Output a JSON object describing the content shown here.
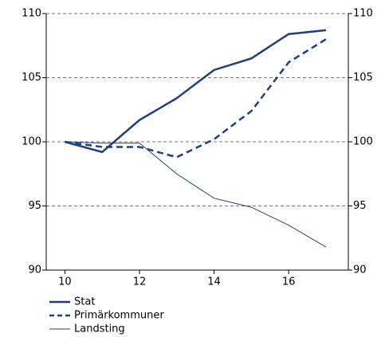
{
  "chart_data": {
    "type": "line",
    "x": [
      10,
      11,
      12,
      13,
      14,
      15,
      16,
      17
    ],
    "series": [
      {
        "name": "Stat",
        "color": "#1f3f7f",
        "dash": false,
        "width": 2.5,
        "values": [
          100,
          99.2,
          101.7,
          103.4,
          105.6,
          106.5,
          108.4,
          108.7
        ]
      },
      {
        "name": "Primärkommuner",
        "color": "#1f3f7f",
        "dash": true,
        "width": 2.5,
        "values": [
          100,
          99.6,
          99.6,
          98.8,
          100.2,
          102.4,
          106.2,
          108.0
        ]
      },
      {
        "name": "Landsting",
        "color": "#1f3f7f",
        "dash": false,
        "width": 1,
        "values": [
          100,
          99.9,
          99.9,
          97.5,
          95.6,
          94.9,
          93.5,
          91.8
        ]
      }
    ],
    "xlim": [
      9.5,
      17.6
    ],
    "xticks": [
      10,
      12,
      14,
      16
    ],
    "ylim": [
      90,
      110
    ],
    "yticks": [
      90,
      95,
      100,
      105,
      110
    ],
    "y2lim": [
      90,
      110
    ],
    "y2ticks": [
      90,
      95,
      100,
      105,
      110
    ],
    "grid": true
  }
}
